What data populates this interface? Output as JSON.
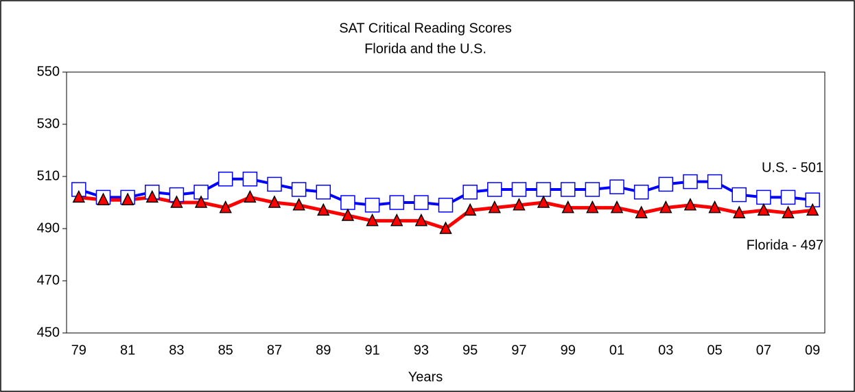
{
  "chart_data": {
    "type": "line",
    "title": "SAT Critical Reading Scores",
    "subtitle": "Florida and the U.S.",
    "x_label": "Years",
    "categories": [
      "79",
      null,
      "81",
      null,
      "83",
      null,
      "85",
      null,
      "87",
      null,
      "89",
      null,
      "91",
      null,
      "93",
      null,
      "95",
      null,
      "97",
      null,
      "99",
      null,
      "01",
      null,
      "03",
      null,
      "05",
      null,
      "07",
      null,
      "09"
    ],
    "series": [
      {
        "name": "U.S.",
        "color": "#0000ff",
        "marker": "square",
        "values": [
          505,
          502,
          502,
          504,
          503,
          504,
          509,
          509,
          507,
          505,
          504,
          500,
          499,
          500,
          500,
          499,
          504,
          505,
          505,
          505,
          505,
          505,
          506,
          504,
          507,
          508,
          508,
          503,
          502,
          502,
          501
        ]
      },
      {
        "name": "Florida",
        "color": "#ff0000",
        "marker": "triangle",
        "values": [
          502,
          501,
          501,
          502,
          500,
          500,
          498,
          502,
          500,
          499,
          497,
          495,
          493,
          493,
          493,
          490,
          497,
          498,
          499,
          500,
          498,
          498,
          498,
          496,
          498,
          499,
          498,
          496,
          497,
          496,
          497
        ]
      }
    ],
    "annotations": [
      {
        "text": "U.S. - 501",
        "series": 0
      },
      {
        "text": "Florida - 497",
        "series": 1
      }
    ],
    "ylim": [
      450,
      550
    ],
    "yticks": [
      450,
      470,
      490,
      510,
      530,
      550
    ],
    "grid": false
  }
}
